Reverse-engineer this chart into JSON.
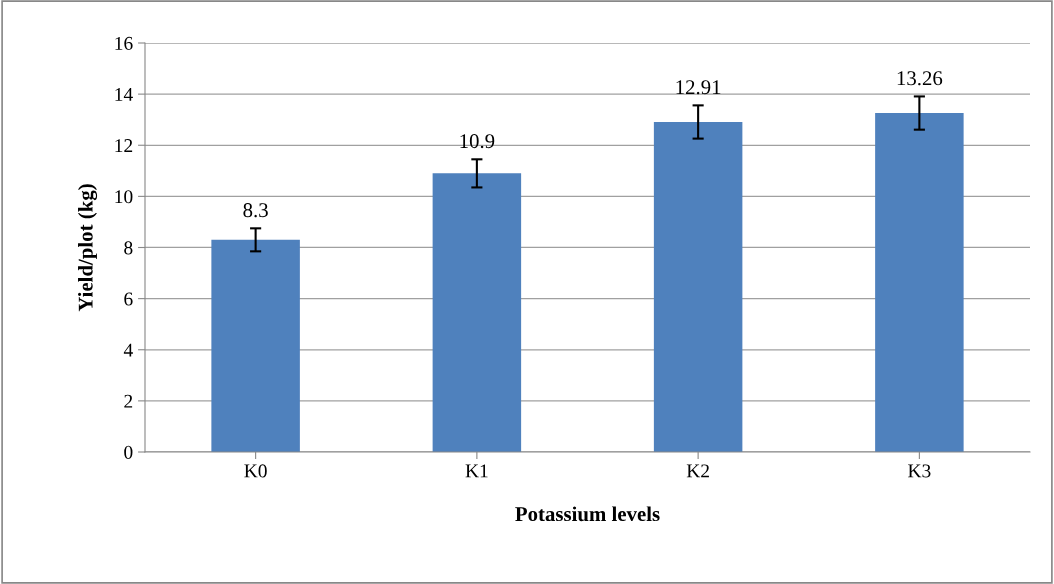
{
  "chart_data": {
    "type": "bar",
    "xlabel": "Potassium levels",
    "ylabel": "Yield/plot (kg)",
    "categories": [
      "K0",
      "K1",
      "K2",
      "K3"
    ],
    "values": [
      8.3,
      10.9,
      12.91,
      13.26
    ],
    "errors": [
      0.45,
      0.55,
      0.65,
      0.65
    ],
    "color": "#4f81bd",
    "data_labels": true,
    "ylim": [
      0,
      16
    ],
    "yticks": [
      0,
      2,
      4,
      6,
      8,
      10,
      12,
      14,
      16
    ],
    "grid": "y",
    "legend": false
  }
}
